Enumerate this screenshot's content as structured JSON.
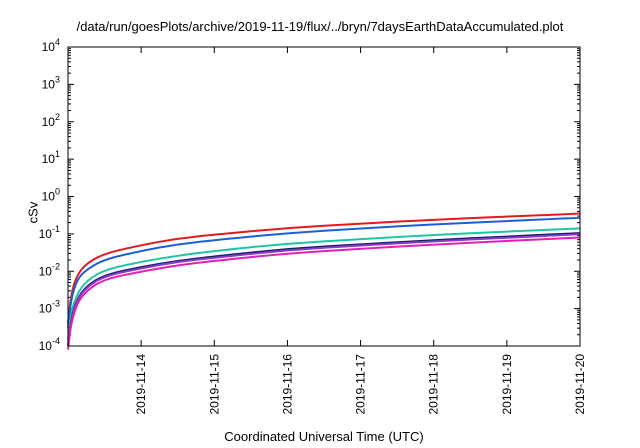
{
  "chart_data": {
    "type": "line",
    "title": "/data/run/goesPlots/archive/2019-11-19/flux/../bryn/7daysEarthDataAccumulated.plot",
    "xlabel": "Coordinated Universal Time (UTC)",
    "ylabel": "cSv",
    "y_scale": "log",
    "ylim": [
      0.0001,
      10000
    ],
    "xlim": [
      "2019-11-13",
      "2019-11-20"
    ],
    "y_ticks": [
      {
        "mantissa": "10",
        "exp": "-4"
      },
      {
        "mantissa": "10",
        "exp": "-3"
      },
      {
        "mantissa": "10",
        "exp": "-2"
      },
      {
        "mantissa": "10",
        "exp": "-1"
      },
      {
        "mantissa": "10",
        "exp": "0"
      },
      {
        "mantissa": "10",
        "exp": "1"
      },
      {
        "mantissa": "10",
        "exp": "2"
      },
      {
        "mantissa": "10",
        "exp": "3"
      },
      {
        "mantissa": "10",
        "exp": "4"
      }
    ],
    "x_ticks": [
      "2019-11-14",
      "2019-11-15",
      "2019-11-16",
      "2019-11-17",
      "2019-11-18",
      "2019-11-19",
      "2019-11-20"
    ],
    "grid": false,
    "legend": "none",
    "x": [
      "2019-11-13T00:00",
      "2019-11-13T01:00",
      "2019-11-13T03:00",
      "2019-11-13T06:00",
      "2019-11-13T12:00",
      "2019-11-14T00:00",
      "2019-11-14T12:00",
      "2019-11-15T00:00",
      "2019-11-16T00:00",
      "2019-11-17T00:00",
      "2019-11-18T00:00",
      "2019-11-19T00:00",
      "2019-11-20T00:00"
    ],
    "series": [
      {
        "color": "#e31a1c",
        "values": [
          0.0004,
          0.0025,
          0.008,
          0.016,
          0.03,
          0.05,
          0.075,
          0.095,
          0.145,
          0.19,
          0.24,
          0.29,
          0.35
        ]
      },
      {
        "color": "#1f5fd6",
        "values": [
          0.0003,
          0.0018,
          0.006,
          0.011,
          0.021,
          0.035,
          0.053,
          0.068,
          0.105,
          0.14,
          0.18,
          0.22,
          0.27
        ]
      },
      {
        "color": "#20c4a0",
        "values": [
          0.00015,
          0.0008,
          0.0025,
          0.0055,
          0.011,
          0.018,
          0.026,
          0.035,
          0.055,
          0.072,
          0.094,
          0.115,
          0.14
        ]
      },
      {
        "color": "#1a1a70",
        "values": [
          0.0001,
          0.00055,
          0.0018,
          0.004,
          0.008,
          0.013,
          0.019,
          0.025,
          0.04,
          0.053,
          0.068,
          0.085,
          0.105
        ]
      },
      {
        "color": "#8a3ac7",
        "values": [
          0.0001,
          0.0005,
          0.0017,
          0.0037,
          0.0075,
          0.012,
          0.018,
          0.023,
          0.037,
          0.049,
          0.063,
          0.079,
          0.098
        ]
      },
      {
        "color": "#e020b8",
        "values": [
          8e-05,
          0.0004,
          0.0014,
          0.003,
          0.0062,
          0.0098,
          0.0145,
          0.019,
          0.03,
          0.04,
          0.052,
          0.065,
          0.08
        ]
      }
    ]
  }
}
